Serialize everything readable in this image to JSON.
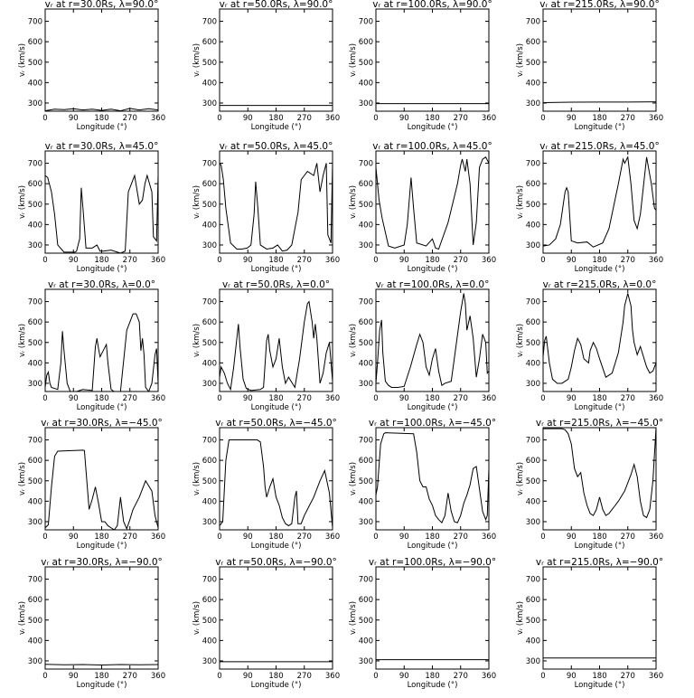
{
  "figure": {
    "xlabel": "Longitude (°)",
    "ylabel": "vᵣ (km/s)",
    "xlim": [
      0,
      360
    ],
    "ylim": [
      260,
      760
    ],
    "xticks": [
      0,
      90,
      180,
      270,
      360
    ],
    "yticks": [
      300,
      400,
      500,
      600,
      700
    ],
    "line_color": "#000000",
    "background": "#ffffff"
  },
  "chart_data": [
    {
      "type": "line",
      "title": "vᵣ at r=30.0Rs, λ=90.0°",
      "x": [
        0,
        30,
        60,
        90,
        120,
        150,
        180,
        210,
        240,
        270,
        300,
        330,
        360
      ],
      "y": [
        262,
        270,
        268,
        272,
        266,
        270,
        264,
        270,
        262,
        274,
        266,
        272,
        266
      ]
    },
    {
      "type": "line",
      "title": "vᵣ at r=50.0Rs, λ=90.0°",
      "x": [
        0,
        360
      ],
      "y": [
        288,
        288
      ]
    },
    {
      "type": "line",
      "title": "vᵣ at r=100.0Rs, λ=90.0°",
      "x": [
        0,
        360
      ],
      "y": [
        297,
        297
      ]
    },
    {
      "type": "line",
      "title": "vᵣ at r=215.0Rs, λ=90.0°",
      "x": [
        0,
        90,
        180,
        270,
        360
      ],
      "y": [
        302,
        304,
        305,
        305,
        306
      ]
    },
    {
      "type": "line",
      "title": "vᵣ at r=30.0Rs, λ=45.0°",
      "x": [
        0,
        8,
        20,
        30,
        40,
        60,
        80,
        95,
        100,
        110,
        115,
        122,
        130,
        150,
        165,
        175,
        185,
        210,
        240,
        255,
        265,
        275,
        285,
        300,
        310,
        318,
        325,
        340,
        345,
        355,
        360
      ],
      "y": [
        640,
        630,
        560,
        450,
        300,
        265,
        265,
        265,
        270,
        330,
        580,
        450,
        285,
        285,
        300,
        270,
        270,
        275,
        260,
        270,
        560,
        600,
        640,
        500,
        520,
        600,
        640,
        560,
        340,
        320,
        640
      ]
    },
    {
      "type": "line",
      "title": "vᵣ at r=50.0Rs, λ=45.0°",
      "x": [
        0,
        5,
        12,
        20,
        35,
        55,
        70,
        88,
        100,
        110,
        115,
        122,
        130,
        150,
        170,
        185,
        200,
        215,
        230,
        250,
        260,
        270,
        280,
        300,
        310,
        320,
        330,
        340,
        345,
        355,
        360
      ],
      "y": [
        700,
        690,
        620,
        480,
        310,
        280,
        280,
        285,
        300,
        450,
        610,
        480,
        300,
        280,
        285,
        300,
        270,
        275,
        300,
        460,
        620,
        640,
        660,
        640,
        700,
        560,
        640,
        700,
        350,
        310,
        700
      ]
    },
    {
      "type": "line",
      "title": "vᵣ at r=100.0Rs, λ=45.0°",
      "x": [
        0,
        10,
        20,
        40,
        60,
        90,
        100,
        112,
        120,
        130,
        160,
        180,
        190,
        200,
        230,
        260,
        270,
        275,
        285,
        290,
        300,
        310,
        320,
        330,
        340,
        350,
        360
      ],
      "y": [
        680,
        520,
        430,
        295,
        285,
        300,
        400,
        630,
        480,
        310,
        295,
        330,
        285,
        280,
        410,
        600,
        690,
        720,
        660,
        720,
        600,
        300,
        410,
        680,
        720,
        730,
        700
      ]
    },
    {
      "type": "line",
      "title": "vᵣ at r=215.0Rs, λ=45.0°",
      "x": [
        0,
        20,
        40,
        55,
        70,
        75,
        80,
        90,
        110,
        140,
        160,
        190,
        210,
        240,
        255,
        260,
        270,
        280,
        290,
        300,
        310,
        330,
        345,
        355,
        360
      ],
      "y": [
        295,
        300,
        330,
        400,
        560,
        580,
        560,
        320,
        310,
        315,
        290,
        310,
        380,
        600,
        720,
        700,
        730,
        600,
        420,
        380,
        450,
        730,
        600,
        480,
        470
      ]
    },
    {
      "type": "line",
      "title": "vᵣ at r=30.0Rs, λ=0.0°",
      "x": [
        0,
        5,
        10,
        15,
        20,
        40,
        50,
        55,
        60,
        70,
        80,
        100,
        120,
        150,
        160,
        165,
        170,
        175,
        185,
        195,
        200,
        210,
        220,
        240,
        260,
        270,
        280,
        290,
        300,
        305,
        310,
        315,
        320,
        330,
        340,
        350,
        355,
        360
      ],
      "y": [
        280,
        340,
        355,
        300,
        280,
        270,
        400,
        555,
        460,
        300,
        260,
        260,
        270,
        265,
        480,
        520,
        470,
        430,
        460,
        490,
        400,
        270,
        260,
        260,
        560,
        600,
        640,
        640,
        600,
        460,
        520,
        440,
        280,
        260,
        300,
        440,
        470,
        300
      ]
    },
    {
      "type": "line",
      "title": "vᵣ at r=50.0Rs, λ=0.0°",
      "x": [
        0,
        5,
        15,
        25,
        35,
        45,
        55,
        60,
        65,
        75,
        85,
        100,
        130,
        140,
        150,
        155,
        160,
        170,
        180,
        190,
        200,
        210,
        220,
        240,
        255,
        270,
        280,
        285,
        295,
        300,
        305,
        310,
        320,
        330,
        340,
        350,
        360
      ],
      "y": [
        330,
        380,
        350,
        300,
        270,
        380,
        520,
        590,
        480,
        320,
        275,
        265,
        270,
        280,
        510,
        540,
        460,
        380,
        420,
        520,
        380,
        300,
        330,
        280,
        420,
        600,
        690,
        700,
        600,
        520,
        590,
        520,
        300,
        350,
        450,
        500,
        310
      ]
    },
    {
      "type": "line",
      "title": "vᵣ at r=100.0Rs, λ=0.0°",
      "x": [
        0,
        5,
        12,
        18,
        22,
        30,
        40,
        50,
        70,
        90,
        110,
        130,
        140,
        150,
        160,
        170,
        180,
        190,
        200,
        210,
        220,
        240,
        255,
        270,
        280,
        285,
        290,
        300,
        310,
        320,
        330,
        340,
        350,
        355,
        360
      ],
      "y": [
        300,
        400,
        560,
        610,
        450,
        310,
        290,
        280,
        280,
        285,
        380,
        490,
        540,
        500,
        380,
        340,
        420,
        470,
        360,
        290,
        300,
        310,
        480,
        650,
        740,
        690,
        560,
        630,
        520,
        330,
        420,
        540,
        500,
        350,
        360
      ]
    },
    {
      "type": "line",
      "title": "vᵣ at r=215.0Rs, λ=0.0°",
      "x": [
        0,
        5,
        10,
        20,
        30,
        45,
        60,
        80,
        90,
        100,
        110,
        120,
        130,
        145,
        150,
        160,
        170,
        180,
        200,
        220,
        240,
        255,
        260,
        270,
        280,
        285,
        290,
        300,
        310,
        320,
        330,
        340,
        350,
        360
      ],
      "y": [
        430,
        510,
        530,
        400,
        320,
        300,
        300,
        320,
        380,
        460,
        520,
        490,
        420,
        400,
        460,
        500,
        470,
        420,
        330,
        350,
        450,
        600,
        680,
        740,
        680,
        560,
        500,
        440,
        480,
        430,
        380,
        350,
        360,
        400
      ]
    },
    {
      "type": "line",
      "title": "vᵣ at r=30.0Rs, λ=−45.0°",
      "x": [
        0,
        10,
        20,
        30,
        40,
        120,
        125,
        140,
        150,
        160,
        170,
        180,
        190,
        200,
        210,
        220,
        230,
        240,
        250,
        260,
        270,
        280,
        300,
        320,
        340,
        350,
        360
      ],
      "y": [
        270,
        285,
        470,
        620,
        645,
        650,
        648,
        360,
        410,
        470,
        390,
        300,
        300,
        280,
        270,
        260,
        280,
        420,
        300,
        265,
        310,
        360,
        420,
        500,
        450,
        330,
        270
      ]
    },
    {
      "type": "line",
      "title": "vᵣ at r=50.0Rs, λ=−45.0°",
      "x": [
        0,
        10,
        20,
        30,
        120,
        130,
        140,
        145,
        150,
        160,
        170,
        180,
        190,
        200,
        210,
        220,
        230,
        240,
        245,
        250,
        260,
        270,
        280,
        300,
        320,
        335,
        350,
        360
      ],
      "y": [
        280,
        300,
        600,
        700,
        700,
        690,
        570,
        470,
        420,
        470,
        510,
        420,
        380,
        320,
        290,
        280,
        290,
        420,
        450,
        290,
        290,
        330,
        360,
        420,
        500,
        550,
        440,
        270
      ]
    },
    {
      "type": "line",
      "title": "vᵣ at r=100.0Rs, λ=−45.0°",
      "x": [
        0,
        5,
        15,
        25,
        30,
        120,
        130,
        140,
        150,
        160,
        170,
        180,
        190,
        200,
        210,
        220,
        230,
        240,
        250,
        260,
        270,
        280,
        290,
        300,
        310,
        320,
        330,
        340,
        350,
        355,
        360
      ],
      "y": [
        430,
        470,
        680,
        730,
        735,
        730,
        640,
        500,
        470,
        470,
        410,
        380,
        330,
        310,
        295,
        330,
        440,
        350,
        300,
        295,
        330,
        390,
        430,
        480,
        560,
        570,
        460,
        350,
        310,
        330,
        560
      ]
    },
    {
      "type": "line",
      "title": "vᵣ at r=215.0Rs, λ=−45.0°",
      "x": [
        0,
        20,
        40,
        60,
        70,
        80,
        90,
        100,
        110,
        120,
        130,
        140,
        150,
        160,
        170,
        180,
        190,
        200,
        210,
        220,
        230,
        240,
        260,
        280,
        290,
        300,
        310,
        320,
        330,
        340,
        350,
        360
      ],
      "y": [
        755,
        755,
        755,
        755,
        750,
        730,
        680,
        560,
        520,
        540,
        440,
        380,
        340,
        330,
        360,
        420,
        360,
        330,
        340,
        360,
        380,
        400,
        450,
        530,
        580,
        520,
        400,
        330,
        320,
        360,
        500,
        760
      ]
    },
    {
      "type": "line",
      "title": "vᵣ at r=30.0Rs, λ=−90.0°",
      "x": [
        0,
        60,
        120,
        180,
        240,
        300,
        360
      ],
      "y": [
        283,
        281,
        282,
        280,
        282,
        281,
        282
      ]
    },
    {
      "type": "line",
      "title": "vᵣ at r=50.0Rs, λ=−90.0°",
      "x": [
        0,
        360
      ],
      "y": [
        296,
        296
      ]
    },
    {
      "type": "line",
      "title": "vᵣ at r=100.0Rs, λ=−90.0°",
      "x": [
        0,
        360
      ],
      "y": [
        306,
        306
      ]
    },
    {
      "type": "line",
      "title": "vᵣ at r=215.0Rs, λ=−90.0°",
      "x": [
        0,
        360
      ],
      "y": [
        314,
        314
      ]
    }
  ]
}
